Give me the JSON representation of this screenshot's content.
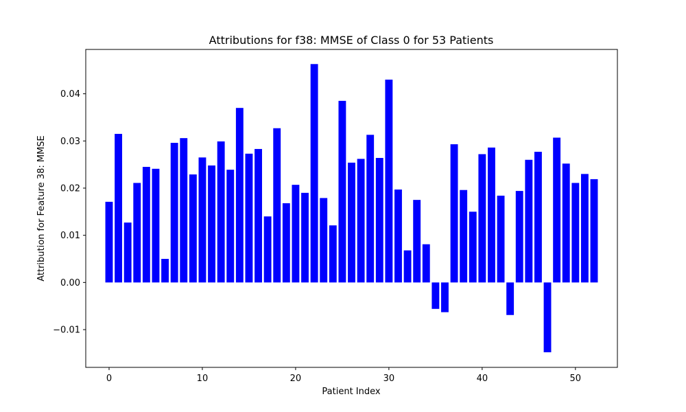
{
  "chart_data": {
    "type": "bar",
    "title": "Attributions for f38: MMSE of Class 0 for 53 Patients",
    "xlabel": "Patient Index",
    "ylabel": "Attribution for Feature 38: MMSE",
    "x": [
      0,
      1,
      2,
      3,
      4,
      5,
      6,
      7,
      8,
      9,
      10,
      11,
      12,
      13,
      14,
      15,
      16,
      17,
      18,
      19,
      20,
      21,
      22,
      23,
      24,
      25,
      26,
      27,
      28,
      29,
      30,
      31,
      32,
      33,
      34,
      35,
      36,
      37,
      38,
      39,
      40,
      41,
      42,
      43,
      44,
      45,
      46,
      47,
      48,
      49,
      50,
      51,
      52
    ],
    "values": [
      0.0171,
      0.0315,
      0.0127,
      0.0211,
      0.0245,
      0.0241,
      0.005,
      0.0296,
      0.0306,
      0.0229,
      0.0265,
      0.0248,
      0.0299,
      0.0239,
      0.037,
      0.0273,
      0.0283,
      0.014,
      0.0327,
      0.0168,
      0.0207,
      0.019,
      0.0463,
      0.0179,
      0.0121,
      0.0385,
      0.0254,
      0.0262,
      0.0313,
      0.0264,
      0.043,
      0.0197,
      0.0068,
      0.0175,
      0.0081,
      -0.0056,
      -0.0063,
      0.0293,
      0.0196,
      0.015,
      0.0272,
      0.0286,
      0.0184,
      -0.0069,
      0.0194,
      0.026,
      0.0277,
      -0.0148,
      0.0307,
      0.0252,
      0.0211,
      0.023,
      0.0219
    ],
    "bar_color": "#0000ff",
    "xlim": [
      -2.5,
      54.5
    ],
    "ylim": [
      -0.018,
      0.0494
    ],
    "xticks": [
      0,
      10,
      20,
      30,
      40,
      50
    ],
    "xtick_labels": [
      "0",
      "10",
      "20",
      "30",
      "40",
      "50"
    ],
    "yticks": [
      -0.01,
      0.0,
      0.01,
      0.02,
      0.03,
      0.04
    ],
    "ytick_labels": [
      "−0.01",
      "0.00",
      "0.01",
      "0.02",
      "0.03",
      "0.04"
    ],
    "grid": false,
    "legend": "none"
  }
}
